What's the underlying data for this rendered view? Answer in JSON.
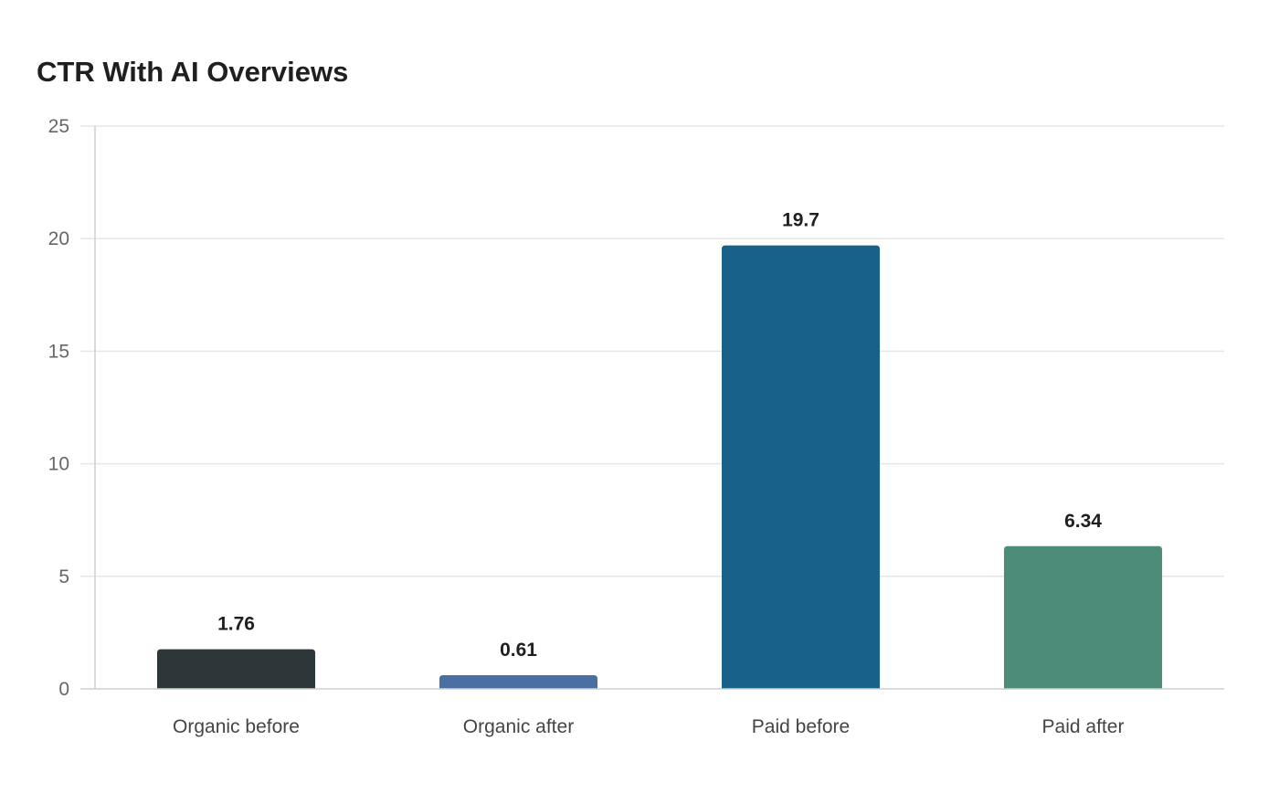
{
  "chart_data": {
    "type": "bar",
    "title": "CTR With AI Overviews",
    "xlabel": "",
    "ylabel": "",
    "categories": [
      "Organic before",
      "Organic after",
      "Paid before",
      "Paid after"
    ],
    "values": [
      1.76,
      0.61,
      19.7,
      6.34
    ],
    "data_labels": [
      "1.76",
      "0.61",
      "19.7",
      "6.34"
    ],
    "colors": [
      "#2d3638",
      "#4a6fa5",
      "#186289",
      "#4e8c7a"
    ],
    "ylim": [
      0,
      25
    ],
    "yticks": [
      0,
      5,
      10,
      15,
      20,
      25
    ],
    "grid": true,
    "legend": "none"
  }
}
